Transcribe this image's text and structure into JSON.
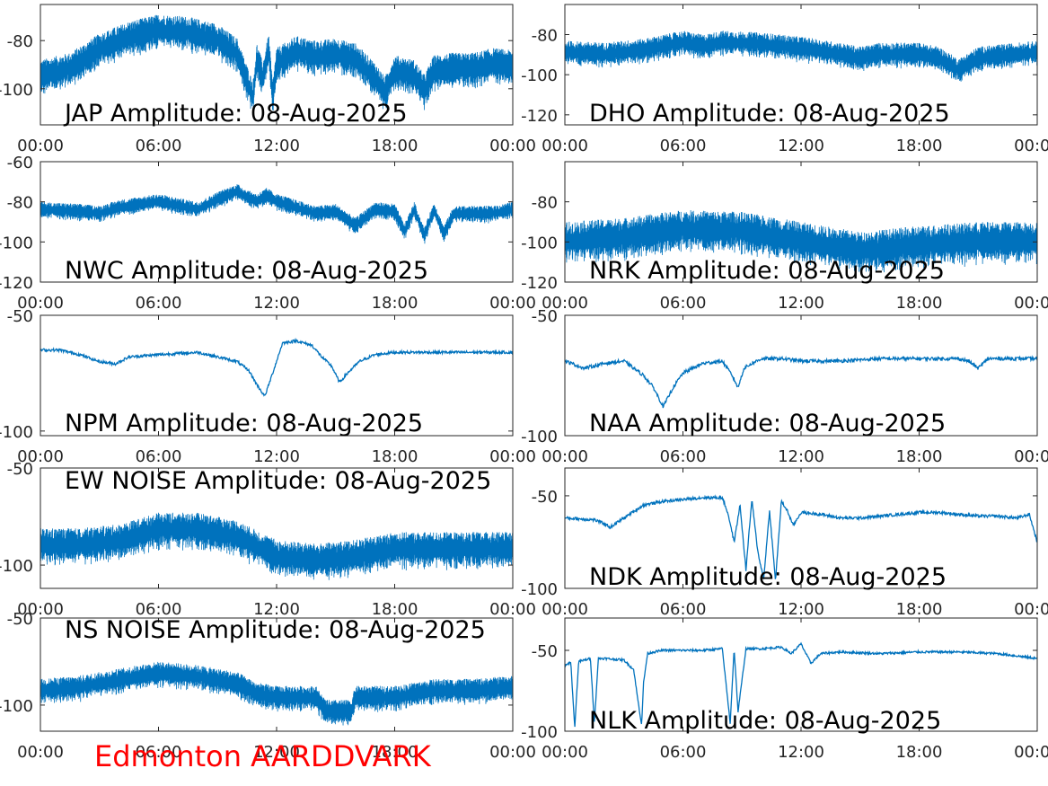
{
  "figure_label": "Edmonton AARDDVARK",
  "colors": {
    "trace": "#0072BD",
    "axis": "#262626",
    "footer": "#ff0000"
  },
  "chart_data": [
    {
      "type": "line",
      "title": "JAP Amplitude: 08-Aug-2025",
      "xticks": [
        "00:00",
        "06:00",
        "12:00",
        "18:00",
        "00:00"
      ],
      "xlim": [
        0,
        24
      ],
      "ylim": [
        -115,
        -65
      ],
      "yticks": [
        -80,
        -100
      ],
      "ytick_labels": [
        "-80",
        "-100"
      ],
      "style": "noisy",
      "series": [
        {
          "x": [
            0,
            1.5,
            3,
            4.5,
            6,
            7.5,
            9,
            10,
            10.8,
            11,
            11.3,
            11.6,
            11.8,
            12,
            13,
            14,
            15,
            16,
            17,
            17.5,
            18,
            19,
            19.5,
            20,
            21,
            22,
            23,
            24
          ],
          "y": [
            -95,
            -92,
            -84,
            -79,
            -76,
            -77,
            -80,
            -86,
            -104,
            -88,
            -96,
            -84,
            -104,
            -90,
            -85,
            -87,
            -86,
            -88,
            -96,
            -102,
            -93,
            -95,
            -101,
            -93,
            -92,
            -92,
            -90,
            -91
          ],
          "amp": 7
        }
      ]
    },
    {
      "type": "line",
      "title": "DHO Amplitude: 08-Aug-2025",
      "xticks": [
        "00:00",
        "06:00",
        "12:00",
        "18:00",
        "00:00"
      ],
      "xlim": [
        0,
        24
      ],
      "ylim": [
        -125,
        -65
      ],
      "yticks": [
        -80,
        -100,
        -120
      ],
      "ytick_labels": [
        "-80",
        "-100",
        "-120"
      ],
      "style": "noisy",
      "series": [
        {
          "x": [
            0,
            2,
            4,
            6,
            7,
            8,
            10,
            12,
            14,
            15,
            16,
            18,
            19,
            20,
            21,
            22,
            24
          ],
          "y": [
            -89,
            -90,
            -88,
            -84,
            -86,
            -84,
            -85,
            -87,
            -90,
            -92,
            -90,
            -90,
            -92,
            -98,
            -92,
            -91,
            -89
          ],
          "amp": 6
        }
      ]
    },
    {
      "type": "line",
      "title": "NWC Amplitude: 08-Aug-2025",
      "xticks": [
        "00:00",
        "06:00",
        "12:00",
        "18:00",
        "00:00"
      ],
      "xlim": [
        0,
        24
      ],
      "ylim": [
        -120,
        -60
      ],
      "yticks": [
        -60,
        -80,
        -100,
        -120
      ],
      "ytick_labels": [
        "-60",
        "-80",
        "-100",
        "-120"
      ],
      "style": "noisy",
      "series": [
        {
          "x": [
            0,
            2,
            3,
            4,
            6,
            8,
            9,
            10,
            10.5,
            11,
            11.5,
            12,
            13,
            14,
            15,
            16,
            17,
            18,
            18.5,
            19,
            19.5,
            20,
            20.5,
            21,
            22,
            23,
            24
          ],
          "y": [
            -84,
            -85,
            -86,
            -83,
            -80,
            -84,
            -79,
            -75,
            -78,
            -80,
            -77,
            -80,
            -83,
            -86,
            -85,
            -92,
            -84,
            -85,
            -95,
            -84,
            -97,
            -84,
            -96,
            -86,
            -86,
            -86,
            -84
          ],
          "amp": 4
        }
      ]
    },
    {
      "type": "line",
      "title": "NRK Amplitude: 08-Aug-2025",
      "xticks": [
        "00:00",
        "06:00",
        "12:00",
        "18:00",
        "00:00"
      ],
      "xlim": [
        0,
        24
      ],
      "ylim": [
        -120,
        -60
      ],
      "yticks": [
        -80,
        -100,
        -120
      ],
      "ytick_labels": [
        "-80",
        "-100",
        "-120"
      ],
      "style": "noisy",
      "series": [
        {
          "x": [
            0,
            3,
            6,
            9,
            12,
            15,
            18,
            21,
            24
          ],
          "y": [
            -100,
            -98,
            -94,
            -95,
            -100,
            -105,
            -102,
            -100,
            -100
          ],
          "amp": 10
        }
      ]
    },
    {
      "type": "line",
      "title": "NPM Amplitude: 08-Aug-2025",
      "xticks": [
        "00:00",
        "06:00",
        "12:00",
        "18:00",
        "00:00"
      ],
      "xlim": [
        0,
        24
      ],
      "ylim": [
        -102,
        -50
      ],
      "yticks": [
        -50,
        -100
      ],
      "ytick_labels": [
        "-50",
        "-100"
      ],
      "style": "smooth",
      "series": [
        {
          "x": [
            0,
            1,
            2,
            3,
            3.8,
            4.5,
            6,
            8,
            9,
            10,
            10.6,
            11,
            11.4,
            11.8,
            12.3,
            13,
            13.8,
            14.3,
            14.8,
            15.2,
            15.6,
            16.2,
            17,
            18,
            19,
            21,
            24
          ],
          "y": [
            -65,
            -65,
            -67,
            -70,
            -71,
            -68,
            -67,
            -66,
            -68,
            -70,
            -74,
            -80,
            -85,
            -75,
            -62,
            -61,
            -63,
            -68,
            -72,
            -79,
            -75,
            -70,
            -67,
            -66,
            -66,
            -66,
            -66
          ],
          "amp": 0.6
        }
      ]
    },
    {
      "type": "line",
      "title": "NAA Amplitude: 08-Aug-2025",
      "xticks": [
        "00:00",
        "06:00",
        "12:00",
        "18:00",
        "00:00"
      ],
      "xlim": [
        0,
        24
      ],
      "ylim": [
        -100,
        -50
      ],
      "yticks": [
        -50,
        -100
      ],
      "ytick_labels": [
        "-50",
        "-100"
      ],
      "style": "smooth",
      "series": [
        {
          "x": [
            0,
            1,
            2,
            3,
            4,
            4.5,
            5,
            5.5,
            6,
            7,
            8,
            8.5,
            8.8,
            9.1,
            9.5,
            10,
            11,
            12,
            14,
            16,
            18,
            20,
            20.5,
            21,
            21.5,
            22,
            24
          ],
          "y": [
            -69,
            -72,
            -70,
            -69,
            -75,
            -80,
            -88,
            -80,
            -74,
            -70,
            -69,
            -75,
            -80,
            -72,
            -70,
            -68,
            -68,
            -69,
            -69,
            -68,
            -68,
            -68,
            -69,
            -72,
            -68,
            -68,
            -68
          ],
          "amp": 0.7
        }
      ]
    },
    {
      "type": "line",
      "title": "EW NOISE Amplitude: 08-Aug-2025",
      "xticks": [
        "00:00",
        "06:00",
        "12:00",
        "18:00",
        "00:00"
      ],
      "xlim": [
        0,
        24
      ],
      "ylim": [
        -112,
        -50
      ],
      "yticks": [
        -50,
        -100
      ],
      "ytick_labels": [
        "-50",
        "-100"
      ],
      "style": "noisy",
      "series": [
        {
          "x": [
            0,
            2,
            4,
            6,
            8,
            10,
            12,
            14,
            16,
            18,
            20,
            22,
            24
          ],
          "y": [
            -90,
            -90,
            -88,
            -82,
            -82,
            -86,
            -96,
            -98,
            -96,
            -92,
            -92,
            -92,
            -92
          ],
          "amp": 9
        }
      ]
    },
    {
      "type": "line",
      "title": "NDK Amplitude: 08-Aug-2025",
      "xticks": [
        "00:00",
        "06:00",
        "12:00",
        "18:00",
        "00:00"
      ],
      "xlim": [
        0,
        24
      ],
      "ylim": [
        -100,
        -35
      ],
      "yticks": [
        -50,
        -100
      ],
      "ytick_labels": [
        "-50",
        "-100"
      ],
      "style": "smooth",
      "series": [
        {
          "x": [
            0,
            1.5,
            2,
            2.3,
            3,
            4,
            5,
            6,
            7,
            8,
            8.3,
            8.6,
            8.9,
            9.2,
            9.5,
            9.8,
            10.1,
            10.4,
            10.7,
            11,
            11.3,
            11.6,
            12,
            13,
            14,
            15,
            16,
            17,
            18,
            19,
            20,
            21,
            22,
            23,
            23.6,
            24
          ],
          "y": [
            -62,
            -63,
            -65,
            -67,
            -62,
            -55,
            -53,
            -52,
            -51,
            -51,
            -60,
            -75,
            -55,
            -90,
            -52,
            -80,
            -95,
            -58,
            -96,
            -53,
            -58,
            -66,
            -59,
            -60,
            -62,
            -62,
            -61,
            -60,
            -59,
            -59,
            -60,
            -61,
            -61,
            -62,
            -60,
            -75
          ],
          "amp": 0.8
        }
      ]
    },
    {
      "type": "line",
      "title": "NS NOISE Amplitude: 08-Aug-2025",
      "xticks": [
        "00:00",
        "06:00",
        "12:00",
        "18:00",
        "00:00"
      ],
      "xlim": [
        0,
        24
      ],
      "ylim": [
        -115,
        -50
      ],
      "yticks": [
        -50,
        -100
      ],
      "ytick_labels": [
        "-50",
        "-100"
      ],
      "style": "noisy",
      "series": [
        {
          "x": [
            0,
            2,
            4,
            6,
            8,
            10,
            11,
            12,
            14,
            14.5,
            15,
            15.8,
            16,
            18,
            20,
            22,
            24
          ],
          "y": [
            -92,
            -90,
            -86,
            -82,
            -84,
            -88,
            -94,
            -96,
            -96,
            -104,
            -104,
            -104,
            -96,
            -96,
            -92,
            -92,
            -90
          ],
          "amp": 7
        }
      ]
    },
    {
      "type": "line",
      "title": "NLK Amplitude: 08-Aug-2025",
      "xticks": [
        "00:00",
        "06:00",
        "12:00",
        "18:00",
        "00:00"
      ],
      "xlim": [
        0,
        24
      ],
      "ylim": [
        -100,
        -30
      ],
      "yticks": [
        -50,
        -100
      ],
      "ytick_labels": [
        "-50",
        "-100"
      ],
      "style": "smooth",
      "series": [
        {
          "x": [
            0,
            0.3,
            0.5,
            0.7,
            1,
            1.3,
            1.5,
            1.7,
            2,
            3,
            3.5,
            3.7,
            3.9,
            4,
            4.2,
            4.5,
            5,
            6,
            7,
            8,
            8.4,
            8.6,
            8.8,
            9.2,
            10,
            11,
            11.5,
            12,
            12.5,
            13,
            14,
            16,
            18,
            20,
            22,
            24
          ],
          "y": [
            -60,
            -57,
            -98,
            -57,
            -56,
            -55,
            -95,
            -55,
            -55,
            -56,
            -62,
            -80,
            -96,
            -70,
            -52,
            -51,
            -50,
            -50,
            -50,
            -49,
            -95,
            -49,
            -88,
            -49,
            -49,
            -48,
            -52,
            -46,
            -58,
            -52,
            -51,
            -52,
            -51,
            -51,
            -52,
            -55
          ],
          "amp": 0.7
        }
      ]
    }
  ]
}
